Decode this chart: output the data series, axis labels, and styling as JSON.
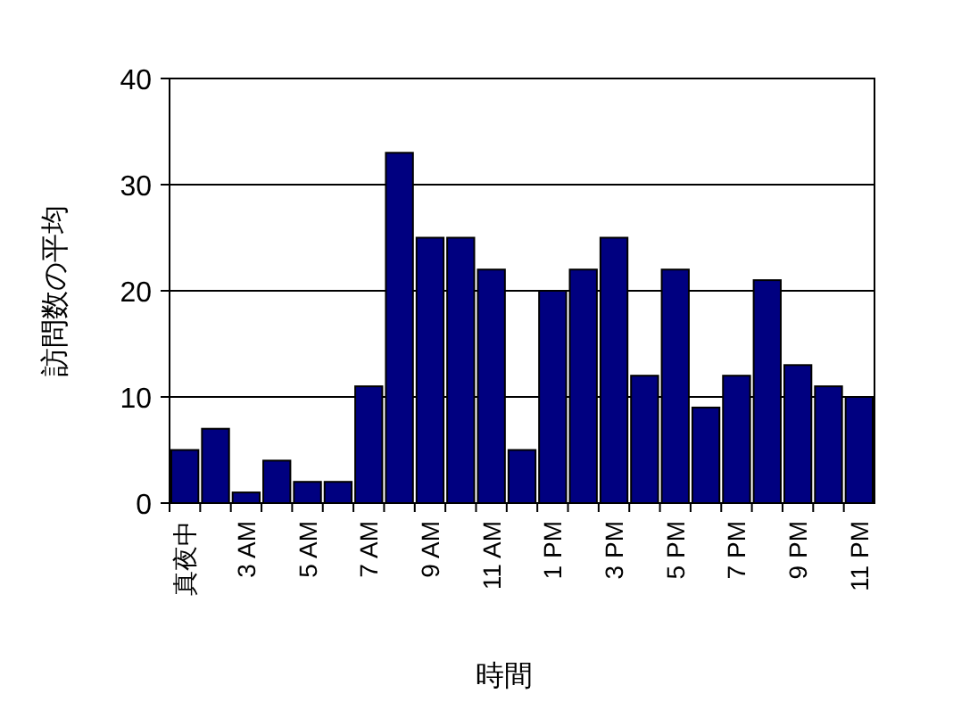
{
  "chart_data": {
    "type": "bar",
    "xlabel": "時間",
    "ylabel": "訪問数の平均",
    "categories": [
      "真夜中",
      null,
      "3 AM",
      null,
      "5 AM",
      null,
      "7 AM",
      null,
      "9 AM",
      null,
      "11 AM",
      null,
      "1 PM",
      null,
      "3 PM",
      null,
      "5 PM",
      null,
      "7 PM",
      null,
      "9 PM",
      null,
      "11 PM"
    ],
    "values": [
      5,
      7,
      1,
      4,
      2,
      2,
      11,
      33,
      25,
      25,
      22,
      5,
      20,
      22,
      25,
      12,
      22,
      9,
      12,
      21,
      13,
      11,
      10
    ],
    "color": "#000080",
    "ylim": [
      0,
      40
    ],
    "yticks": [
      0,
      10,
      20,
      30,
      40
    ],
    "grid": "y"
  }
}
